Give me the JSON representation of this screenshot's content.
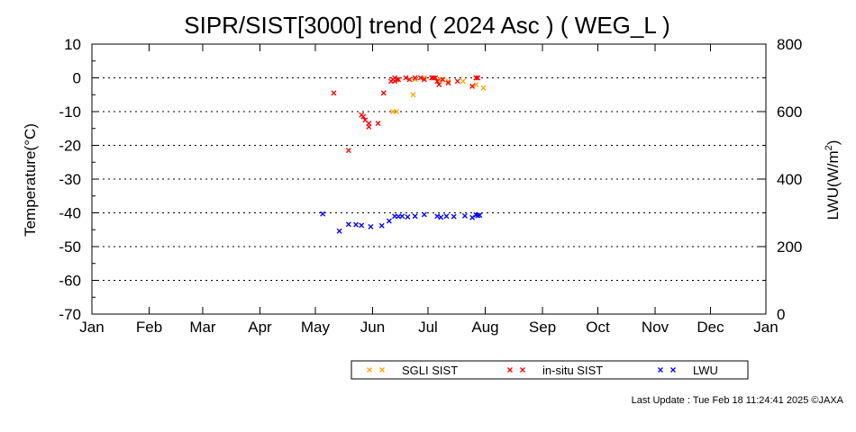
{
  "chart_data": {
    "type": "scatter",
    "title": "SIPR/SIST[3000] trend ( 2024 Asc ) ( WEG_L )",
    "ylabel": "Temperature(°C)",
    "y2label_base": "LWU(W/m",
    "y2label_sup": "2",
    "y2label_end": ")",
    "xlabel": "",
    "xlim": [
      0,
      365
    ],
    "ylim": [
      -70,
      10
    ],
    "y2lim": [
      0,
      800
    ],
    "grid": "dotted horizontal",
    "x_ticks": [
      {
        "label": "Jan",
        "day": 0
      },
      {
        "label": "Feb",
        "day": 31
      },
      {
        "label": "Mar",
        "day": 60
      },
      {
        "label": "Apr",
        "day": 91
      },
      {
        "label": "May",
        "day": 121
      },
      {
        "label": "Jun",
        "day": 152
      },
      {
        "label": "Jul",
        "day": 182
      },
      {
        "label": "Aug",
        "day": 213
      },
      {
        "label": "Sep",
        "day": 244
      },
      {
        "label": "Oct",
        "day": 274
      },
      {
        "label": "Nov",
        "day": 305
      },
      {
        "label": "Dec",
        "day": 335
      },
      {
        "label": "Jan",
        "day": 365
      }
    ],
    "y_ticks": [
      "10",
      "0",
      "-10",
      "-20",
      "-30",
      "-40",
      "-50",
      "-60",
      "-70"
    ],
    "y2_ticks": [
      "800",
      "600",
      "400",
      "200",
      "0"
    ],
    "series": [
      {
        "name": "SGLI SIST",
        "color": "#ffa500",
        "axis": "left",
        "points": [
          [
            158,
            -4.5
          ],
          [
            163,
            -10
          ],
          [
            165,
            -10
          ],
          [
            174,
            -5
          ],
          [
            175,
            -0.5
          ],
          [
            180,
            0
          ],
          [
            189,
            -0.5
          ],
          [
            193,
            -1
          ],
          [
            201,
            -1
          ],
          [
            208,
            -2
          ],
          [
            212,
            -3
          ]
        ]
      },
      {
        "name": "in-situ SIST",
        "color": "#ff0000",
        "axis": "left",
        "points": [
          [
            131,
            -4.5
          ],
          [
            139,
            -21.5
          ],
          [
            146,
            -11
          ],
          [
            147,
            -11.5
          ],
          [
            148,
            -12.5
          ],
          [
            150,
            -13.5
          ],
          [
            150,
            -14.5
          ],
          [
            155,
            -13.5
          ],
          [
            158,
            -4.5
          ],
          [
            162,
            -1
          ],
          [
            163,
            -0.5
          ],
          [
            164,
            0
          ],
          [
            164,
            -1
          ],
          [
            165,
            -0.5
          ],
          [
            166,
            -0.5
          ],
          [
            170,
            0
          ],
          [
            172,
            -0.5
          ],
          [
            175,
            0
          ],
          [
            178,
            0
          ],
          [
            180,
            -0.5
          ],
          [
            184,
            0
          ],
          [
            185,
            0
          ],
          [
            186,
            0
          ],
          [
            187,
            -1
          ],
          [
            188,
            -2
          ],
          [
            190,
            -0.5
          ],
          [
            193,
            -1.5
          ],
          [
            198,
            -1
          ],
          [
            206,
            -2.5
          ],
          [
            208,
            0
          ],
          [
            209,
            0
          ]
        ]
      },
      {
        "name": "LWU",
        "color": "#0000ff",
        "axis": "right",
        "points": [
          [
            125,
            297
          ],
          [
            134,
            246
          ],
          [
            139,
            266
          ],
          [
            143,
            265
          ],
          [
            146,
            263
          ],
          [
            151,
            259
          ],
          [
            157,
            262
          ],
          [
            161,
            276
          ],
          [
            164,
            290
          ],
          [
            166,
            289
          ],
          [
            168,
            290
          ],
          [
            171,
            288
          ],
          [
            175,
            290
          ],
          [
            180,
            295
          ],
          [
            187,
            290
          ],
          [
            189,
            287
          ],
          [
            192,
            290
          ],
          [
            196,
            289
          ],
          [
            202,
            291
          ],
          [
            206,
            286
          ],
          [
            208,
            294
          ],
          [
            209,
            292
          ],
          [
            210,
            293
          ]
        ]
      }
    ],
    "legend_position": "bottom-right",
    "legend": [
      {
        "label": "SGLI SIST",
        "color": "#ffa500"
      },
      {
        "label": "in-situ SIST",
        "color": "#ff0000"
      },
      {
        "label": "LWU",
        "color": "#0000ff"
      }
    ]
  },
  "footer": {
    "last_update": "Last Update : Tue Feb 18 11:24:41 2025 ©JAXA"
  }
}
